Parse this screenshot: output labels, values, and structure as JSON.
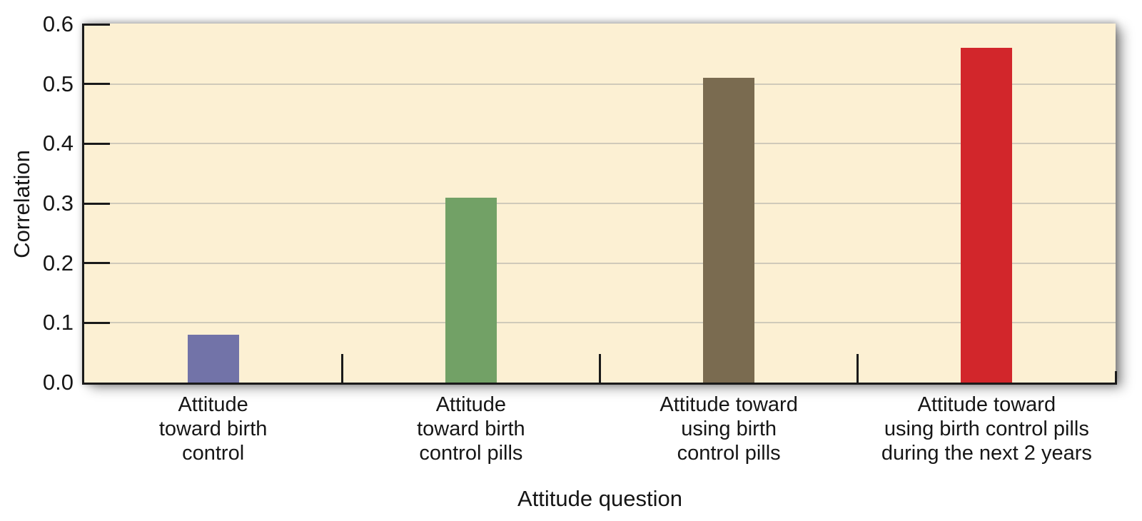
{
  "chart_data": {
    "type": "bar",
    "title": "",
    "xlabel": "Attitude question",
    "ylabel": "Correlation",
    "ylim": [
      0,
      0.6
    ],
    "grid": true,
    "legend": "none",
    "panel_background": "#fcf0d3",
    "gridline_color": "#d0caba",
    "axis_color": "#1a1a1a",
    "text_color": "#161616",
    "yticks": [
      {
        "value": 0.0,
        "label": "0.0"
      },
      {
        "value": 0.1,
        "label": "0.1"
      },
      {
        "value": 0.2,
        "label": "0.2"
      },
      {
        "value": 0.3,
        "label": "0.3"
      },
      {
        "value": 0.4,
        "label": "0.4"
      },
      {
        "value": 0.5,
        "label": "0.5"
      },
      {
        "value": 0.6,
        "label": "0.6"
      }
    ],
    "categories": [
      "Attitude toward birth control",
      "Attitude toward birth control pills",
      "Attitude toward using birth control pills",
      "Attitude toward using birth control pills during the next 2 years"
    ],
    "category_label_lines": [
      [
        "Attitude",
        "toward birth",
        "control"
      ],
      [
        "Attitude",
        "toward birth",
        "control pills"
      ],
      [
        "Attitude toward",
        "using birth",
        "control pills"
      ],
      [
        "Attitude toward",
        "using birth control pills",
        "during the next 2 years"
      ]
    ],
    "values": [
      0.08,
      0.31,
      0.51,
      0.56
    ],
    "bar_colors": [
      "#7273a8",
      "#72a166",
      "#7a6b50",
      "#d2262b"
    ]
  }
}
